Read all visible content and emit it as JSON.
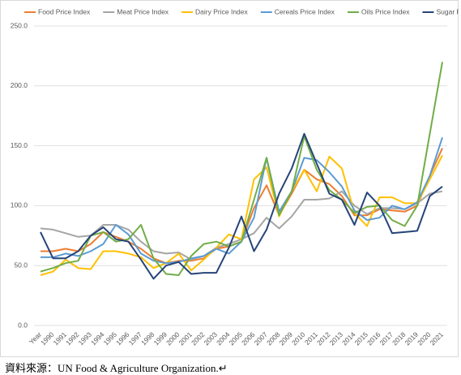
{
  "chart_data": {
    "type": "line",
    "categories": [
      "Year",
      "1990",
      "1991",
      "1992",
      "1993",
      "1994",
      "1995",
      "1996",
      "1997",
      "1998",
      "1999",
      "2000",
      "2001",
      "2002",
      "2003",
      "2004",
      "2005",
      "2006",
      "2007",
      "2008",
      "2009",
      "2010",
      "2011",
      "2012",
      "2013",
      "2014",
      "2015",
      "2016",
      "2017",
      "2018",
      "2019",
      "2020",
      "2021"
    ],
    "series": [
      {
        "name": "Food Price Index",
        "color": "#ed7d31",
        "values": [
          62,
          62,
          64,
          62,
          68,
          78,
          74,
          70,
          64,
          56,
          52,
          54,
          54,
          56,
          64,
          66,
          70,
          98,
          117,
          92,
          110,
          130,
          122,
          118,
          108,
          92,
          92,
          97,
          96,
          95,
          100,
          125,
          148
        ]
      },
      {
        "name": "Meat Price Index",
        "color": "#a5a5a5",
        "values": [
          81,
          80,
          77,
          74,
          75,
          84,
          84,
          80,
          70,
          62,
          60,
          61,
          55,
          58,
          65,
          68,
          72,
          77,
          90,
          81,
          91,
          105,
          105,
          106,
          112,
          100,
          93,
          98,
          98,
          97,
          102,
          110,
          112
        ]
      },
      {
        "name": "Dairy Price Index",
        "color": "#ffc000",
        "values": [
          42,
          45,
          55,
          48,
          47,
          62,
          62,
          60,
          57,
          48,
          52,
          60,
          46,
          55,
          65,
          76,
          72,
          122,
          132,
          91,
          112,
          130,
          112,
          141,
          131,
          94,
          83,
          107,
          107,
          102,
          102,
          122,
          142
        ]
      },
      {
        "name": "Cereals Price Index",
        "color": "#5b9bd5",
        "values": [
          57,
          57,
          60,
          58,
          62,
          68,
          84,
          76,
          60,
          54,
          52,
          53,
          56,
          58,
          64,
          60,
          70,
          90,
          140,
          95,
          112,
          140,
          138,
          128,
          116,
          96,
          88,
          90,
          100,
          97,
          103,
          125,
          157
        ]
      },
      {
        "name": "Oils Price Index",
        "color": "#70ad47",
        "values": [
          45,
          48,
          52,
          54,
          75,
          78,
          70,
          72,
          84,
          56,
          43,
          42,
          58,
          68,
          70,
          66,
          70,
          105,
          140,
          92,
          112,
          158,
          130,
          113,
          105,
          94,
          99,
          100,
          88,
          83,
          100,
          160,
          220
        ]
      },
      {
        "name": "Sugar Price Index",
        "color": "#264478",
        "values": [
          78,
          56,
          56,
          62,
          75,
          82,
          72,
          70,
          55,
          39,
          50,
          53,
          43,
          44,
          44,
          65,
          91,
          62,
          80,
          110,
          131,
          160,
          135,
          110,
          105,
          84,
          111,
          100,
          77,
          78,
          79,
          108,
          116
        ]
      }
    ],
    "ylim": [
      0,
      250
    ],
    "yticks": [
      {
        "value": 0,
        "label": "0.0"
      },
      {
        "value": 50,
        "label": "50.0"
      },
      {
        "value": 100,
        "label": "100.0"
      },
      {
        "value": 150,
        "label": "150.0"
      },
      {
        "value": 200,
        "label": "200.0"
      },
      {
        "value": 250,
        "label": "250.0"
      }
    ],
    "grid": true,
    "legend": "top"
  },
  "caption": "資料來源：UN Food & Agriculture Organization.↵"
}
